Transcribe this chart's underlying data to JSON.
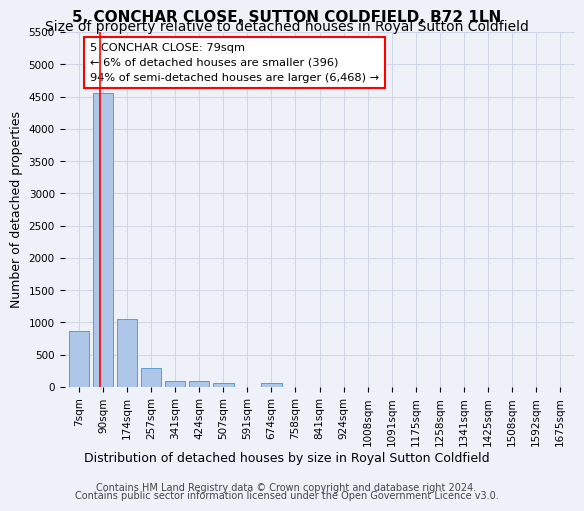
{
  "title": "5, CONCHAR CLOSE, SUTTON COLDFIELD, B72 1LN",
  "subtitle": "Size of property relative to detached houses in Royal Sutton Coldfield",
  "xlabel": "Distribution of detached houses by size in Royal Sutton Coldfield",
  "ylabel": "Number of detached properties",
  "categories": [
    "7sqm",
    "90sqm",
    "174sqm",
    "257sqm",
    "341sqm",
    "424sqm",
    "507sqm",
    "591sqm",
    "674sqm",
    "758sqm",
    "841sqm",
    "924sqm",
    "1008sqm",
    "1091sqm",
    "1175sqm",
    "1258sqm",
    "1341sqm",
    "1425sqm",
    "1508sqm",
    "1592sqm",
    "1675sqm"
  ],
  "values": [
    870,
    4560,
    1060,
    290,
    90,
    90,
    60,
    0,
    60,
    0,
    0,
    0,
    0,
    0,
    0,
    0,
    0,
    0,
    0,
    0,
    0
  ],
  "bar_color": "#aec6e8",
  "bar_edge_color": "#5b9bd5",
  "property_line_x": 0.88,
  "annotation_text": "5 CONCHAR CLOSE: 79sqm\n← 6% of detached houses are smaller (396)\n94% of semi-detached houses are larger (6,468) →",
  "annotation_box_color": "white",
  "annotation_box_edgecolor": "red",
  "grid_color": "#d0d8e8",
  "background_color": "#eef2f8",
  "ylim": [
    0,
    5500
  ],
  "yticks": [
    0,
    500,
    1000,
    1500,
    2000,
    2500,
    3000,
    3500,
    4000,
    4500,
    5000,
    5500
  ],
  "footer1": "Contains HM Land Registry data © Crown copyright and database right 2024.",
  "footer2": "Contains public sector information licensed under the Open Government Licence v3.0.",
  "title_fontsize": 11,
  "subtitle_fontsize": 10,
  "axis_label_fontsize": 9,
  "tick_fontsize": 7.5,
  "footer_fontsize": 7
}
